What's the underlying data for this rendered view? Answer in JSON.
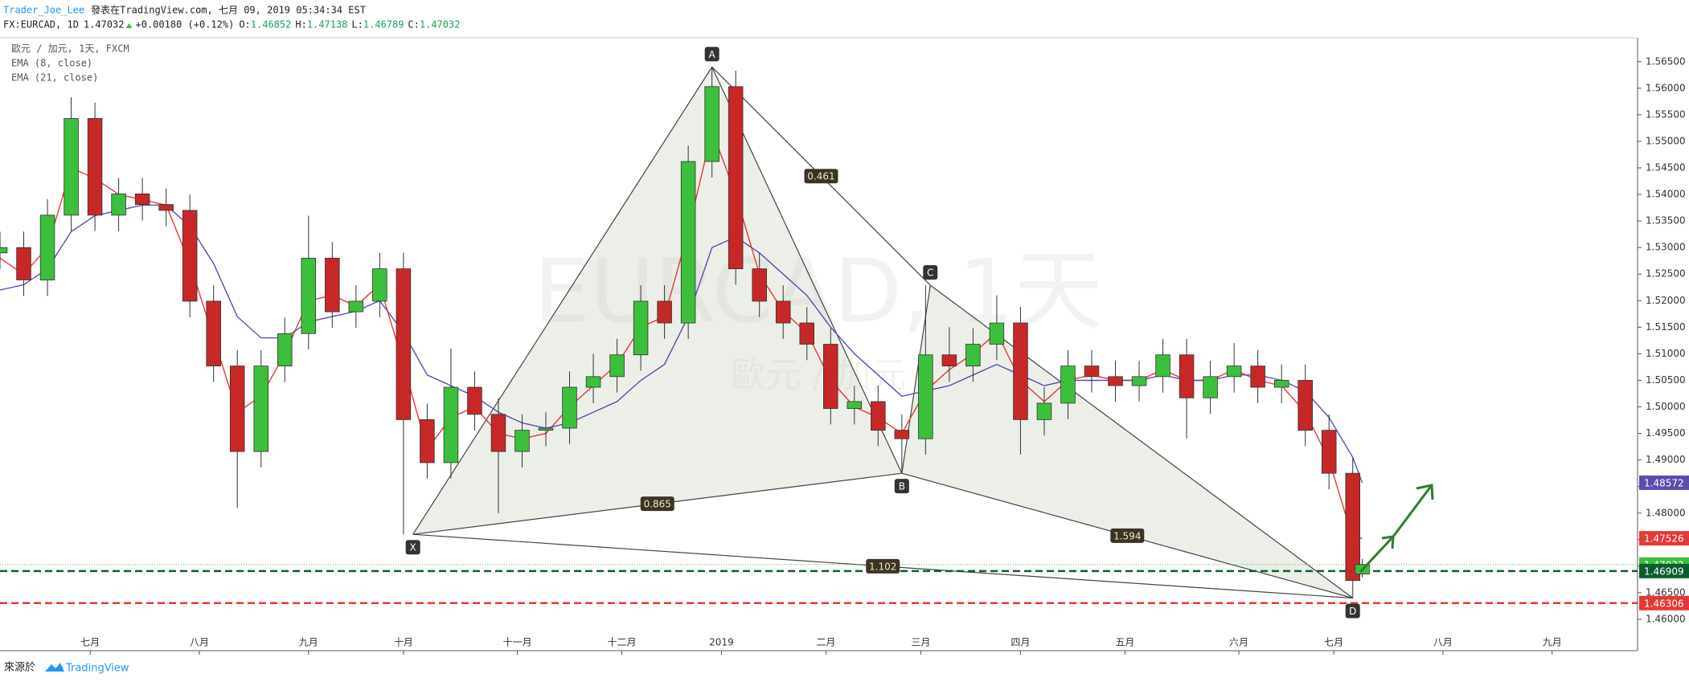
{
  "header": {
    "author": "Trader_Joe_Lee",
    "published": "發表在TradingView.com, 七月 09, 2019 05:34:34 EST",
    "symbol": "FX:EURCAD, 1D",
    "last": "1.47032",
    "change": "+0.00180 (+0.12%)",
    "ohlc": [
      {
        "key": "O:",
        "value": "1.46852"
      },
      {
        "key": "H:",
        "value": "1.47138"
      },
      {
        "key": "L:",
        "value": "1.46789"
      },
      {
        "key": "C:",
        "value": "1.47032"
      }
    ]
  },
  "chart_data": {
    "type": "candlestick",
    "title": "歐元 / 加元, 1天, FXCM",
    "watermark": {
      "title": "EURCAD, 1天",
      "subtitle": "歐元 / 加元"
    },
    "up_color": "#3cbf3c",
    "down_color": "#c62828",
    "x": [
      0,
      5,
      10,
      15,
      20,
      25,
      30,
      35,
      40,
      45,
      50,
      55,
      60,
      65,
      70,
      75,
      80,
      85,
      90,
      95,
      100,
      105,
      110,
      115,
      120,
      125,
      130,
      135,
      140,
      145,
      150,
      155,
      160,
      165,
      170,
      175,
      180,
      185,
      190,
      195,
      200,
      205,
      210,
      215,
      220,
      225,
      230,
      235,
      240,
      245,
      250,
      255,
      260,
      265,
      270,
      275,
      280,
      285,
      287
    ],
    "open": [
      1.529,
      1.53,
      1.5239,
      1.5361,
      1.5543,
      1.5361,
      1.5401,
      1.5381,
      1.537,
      1.5199,
      1.5077,
      1.4916,
      1.5077,
      1.5138,
      1.528,
      1.5179,
      1.5199,
      1.526,
      1.4976,
      1.4895,
      1.5037,
      1.4986,
      1.4916,
      1.4956,
      1.496,
      1.5037,
      1.5057,
      1.5098,
      1.5199,
      1.5158,
      1.5462,
      1.5603,
      1.526,
      1.5199,
      1.5158,
      1.5118,
      1.4997,
      1.501,
      1.4956,
      1.494,
      1.5098,
      1.5077,
      1.5118,
      1.5158,
      1.4976,
      1.5007,
      1.5077,
      1.5057,
      1.504,
      1.5057,
      1.5098,
      1.5017,
      1.5057,
      1.5077,
      1.5037,
      1.505,
      1.4956,
      1.4875,
      1.46852
    ],
    "high": [
      1.533,
      1.533,
      1.5391,
      1.5583,
      1.5573,
      1.5431,
      1.5431,
      1.5411,
      1.54,
      1.5229,
      1.5107,
      1.5107,
      1.5168,
      1.536,
      1.531,
      1.5229,
      1.529,
      1.529,
      1.5006,
      1.511,
      1.5067,
      1.5016,
      1.4986,
      1.499,
      1.5067,
      1.51,
      1.5128,
      1.5229,
      1.5229,
      1.5492,
      1.564,
      1.5633,
      1.529,
      1.5229,
      1.5188,
      1.5148,
      1.504,
      1.504,
      1.4986,
      1.5229,
      1.515,
      1.5148,
      1.521,
      1.5188,
      1.5037,
      1.5107,
      1.5107,
      1.5087,
      1.5087,
      1.5128,
      1.5128,
      1.5087,
      1.512,
      1.5107,
      1.508,
      1.508,
      1.4986,
      1.4905,
      1.47138
    ],
    "low": [
      1.526,
      1.5209,
      1.5209,
      1.5331,
      1.5331,
      1.5331,
      1.5351,
      1.534,
      1.5169,
      1.5047,
      1.481,
      1.4886,
      1.5047,
      1.5108,
      1.5149,
      1.5149,
      1.5169,
      1.476,
      1.4865,
      1.4865,
      1.4956,
      1.48,
      1.4886,
      1.4926,
      1.493,
      1.5007,
      1.5027,
      1.5068,
      1.5128,
      1.5128,
      1.5432,
      1.523,
      1.5169,
      1.5128,
      1.5088,
      1.4967,
      1.4967,
      1.4926,
      1.4875,
      1.491,
      1.5047,
      1.5047,
      1.5088,
      1.491,
      1.4946,
      1.4977,
      1.5027,
      1.501,
      1.501,
      1.5027,
      1.494,
      1.4987,
      1.5027,
      1.5007,
      1.5007,
      1.4926,
      1.4845,
      1.464,
      1.46789
    ],
    "close": [
      1.53,
      1.5239,
      1.5361,
      1.5543,
      1.5361,
      1.5401,
      1.5381,
      1.537,
      1.5199,
      1.5077,
      1.4916,
      1.5077,
      1.5138,
      1.528,
      1.5179,
      1.5199,
      1.526,
      1.4976,
      1.4895,
      1.5037,
      1.4986,
      1.4916,
      1.4956,
      1.496,
      1.5037,
      1.5057,
      1.5098,
      1.5199,
      1.5158,
      1.5462,
      1.5603,
      1.526,
      1.5199,
      1.5158,
      1.5118,
      1.4997,
      1.501,
      1.4956,
      1.494,
      1.5098,
      1.5077,
      1.5118,
      1.5158,
      1.4976,
      1.5007,
      1.5077,
      1.5057,
      1.504,
      1.5057,
      1.5098,
      1.5017,
      1.5057,
      1.5077,
      1.5037,
      1.505,
      1.4956,
      1.4875,
      1.4673,
      1.47032
    ],
    "series": [
      {
        "name": "EMA (8, close)",
        "color": "#e53935",
        "values": [
          1.528,
          1.525,
          1.53,
          1.545,
          1.543,
          1.54,
          1.539,
          1.538,
          1.527,
          1.513,
          1.499,
          1.502,
          1.51,
          1.52,
          1.521,
          1.519,
          1.523,
          1.508,
          1.492,
          1.498,
          1.5,
          1.495,
          1.494,
          1.495,
          1.5,
          1.504,
          1.508,
          1.515,
          1.517,
          1.533,
          1.552,
          1.54,
          1.525,
          1.518,
          1.514,
          1.505,
          1.5,
          1.498,
          1.495,
          1.503,
          1.507,
          1.51,
          1.514,
          1.505,
          1.501,
          1.505,
          1.506,
          1.505,
          1.505,
          1.507,
          1.505,
          1.505,
          1.507,
          1.505,
          1.504,
          1.499,
          1.49,
          1.4753,
          1.47526
        ]
      },
      {
        "name": "EMA (21, close)",
        "color": "#5e4bb0",
        "values": [
          1.522,
          1.523,
          1.526,
          1.533,
          1.536,
          1.537,
          1.538,
          1.538,
          1.534,
          1.527,
          1.517,
          1.513,
          1.513,
          1.516,
          1.517,
          1.518,
          1.52,
          1.514,
          1.506,
          1.504,
          1.502,
          1.499,
          1.497,
          1.496,
          1.497,
          1.499,
          1.501,
          1.505,
          1.508,
          1.517,
          1.53,
          1.532,
          1.529,
          1.525,
          1.521,
          1.515,
          1.51,
          1.506,
          1.502,
          1.503,
          1.504,
          1.506,
          1.508,
          1.506,
          1.504,
          1.505,
          1.505,
          1.505,
          1.505,
          1.506,
          1.505,
          1.505,
          1.506,
          1.506,
          1.505,
          1.503,
          1.498,
          1.4905,
          1.48572
        ]
      }
    ],
    "pattern": {
      "points": [
        {
          "label": "X",
          "x": 87,
          "y": 1.476
        },
        {
          "label": "A",
          "x": 150,
          "y": 1.564
        },
        {
          "label": "B",
          "x": 190,
          "y": 1.4875
        },
        {
          "label": "C",
          "x": 196,
          "y": 1.5229
        },
        {
          "label": "D",
          "x": 285,
          "y": 1.464
        }
      ],
      "ratios": [
        0.461,
        0.865,
        1.594,
        1.102
      ]
    },
    "price_lines": [
      {
        "value": 1.47032,
        "color": "#4caf50",
        "style": "dotted"
      },
      {
        "value": 1.46909,
        "color": "#0b5d2e",
        "style": "dashed"
      },
      {
        "value": 1.46306,
        "color": "#e53935",
        "style": "dashed"
      }
    ],
    "price_labels": [
      {
        "value": 1.48572,
        "color": "#5e4bb0"
      },
      {
        "value": 1.47526,
        "color": "#e53935"
      },
      {
        "value": 1.47032,
        "color": "#3cbf3c"
      },
      {
        "value": 1.46909,
        "color": "#0b5d2e"
      },
      {
        "value": 1.46306,
        "color": "#e53935"
      }
    ],
    "xlim": [
      0,
      345
    ],
    "xticks": [
      {
        "value": 19,
        "label": "七月"
      },
      {
        "value": 42,
        "label": "八月"
      },
      {
        "value": 65,
        "label": "九月"
      },
      {
        "value": 85,
        "label": "十月"
      },
      {
        "value": 109,
        "label": "十一月"
      },
      {
        "value": 131,
        "label": "十二月"
      },
      {
        "value": 152,
        "label": "2019"
      },
      {
        "value": 174,
        "label": "二月"
      },
      {
        "value": 194,
        "label": "三月"
      },
      {
        "value": 215,
        "label": "四月"
      },
      {
        "value": 237,
        "label": "五月"
      },
      {
        "value": 261,
        "label": "六月"
      },
      {
        "value": 281,
        "label": "七月"
      },
      {
        "value": 304,
        "label": "八月"
      },
      {
        "value": 327,
        "label": "九月"
      }
    ],
    "ylim": [
      1.4541,
      1.5695
    ],
    "yticks": [
      {
        "value": 1.46,
        "label": "1.46000"
      },
      {
        "value": 1.465,
        "label": "1.46500"
      },
      {
        "value": 1.47,
        "label": "1.47000"
      },
      {
        "value": 1.475,
        "label": "1.47500"
      },
      {
        "value": 1.48,
        "label": "1.48000"
      },
      {
        "value": 1.485,
        "label": "1.48500"
      },
      {
        "value": 1.49,
        "label": "1.49000"
      },
      {
        "value": 1.495,
        "label": "1.49500"
      },
      {
        "value": 1.5,
        "label": "1.50000"
      },
      {
        "value": 1.505,
        "label": "1.50500"
      },
      {
        "value": 1.51,
        "label": "1.51000"
      },
      {
        "value": 1.515,
        "label": "1.51500"
      },
      {
        "value": 1.52,
        "label": "1.52000"
      },
      {
        "value": 1.525,
        "label": "1.52500"
      },
      {
        "value": 1.53,
        "label": "1.53000"
      },
      {
        "value": 1.535,
        "label": "1.53500"
      },
      {
        "value": 1.54,
        "label": "1.54000"
      },
      {
        "value": 1.545,
        "label": "1.54500"
      },
      {
        "value": 1.55,
        "label": "1.55000"
      },
      {
        "value": 1.555,
        "label": "1.55500"
      },
      {
        "value": 1.56,
        "label": "1.56000"
      },
      {
        "value": 1.565,
        "label": "1.56500"
      }
    ],
    "grid": false
  },
  "footer": {
    "source": "來源於",
    "brand": "TradingView"
  }
}
